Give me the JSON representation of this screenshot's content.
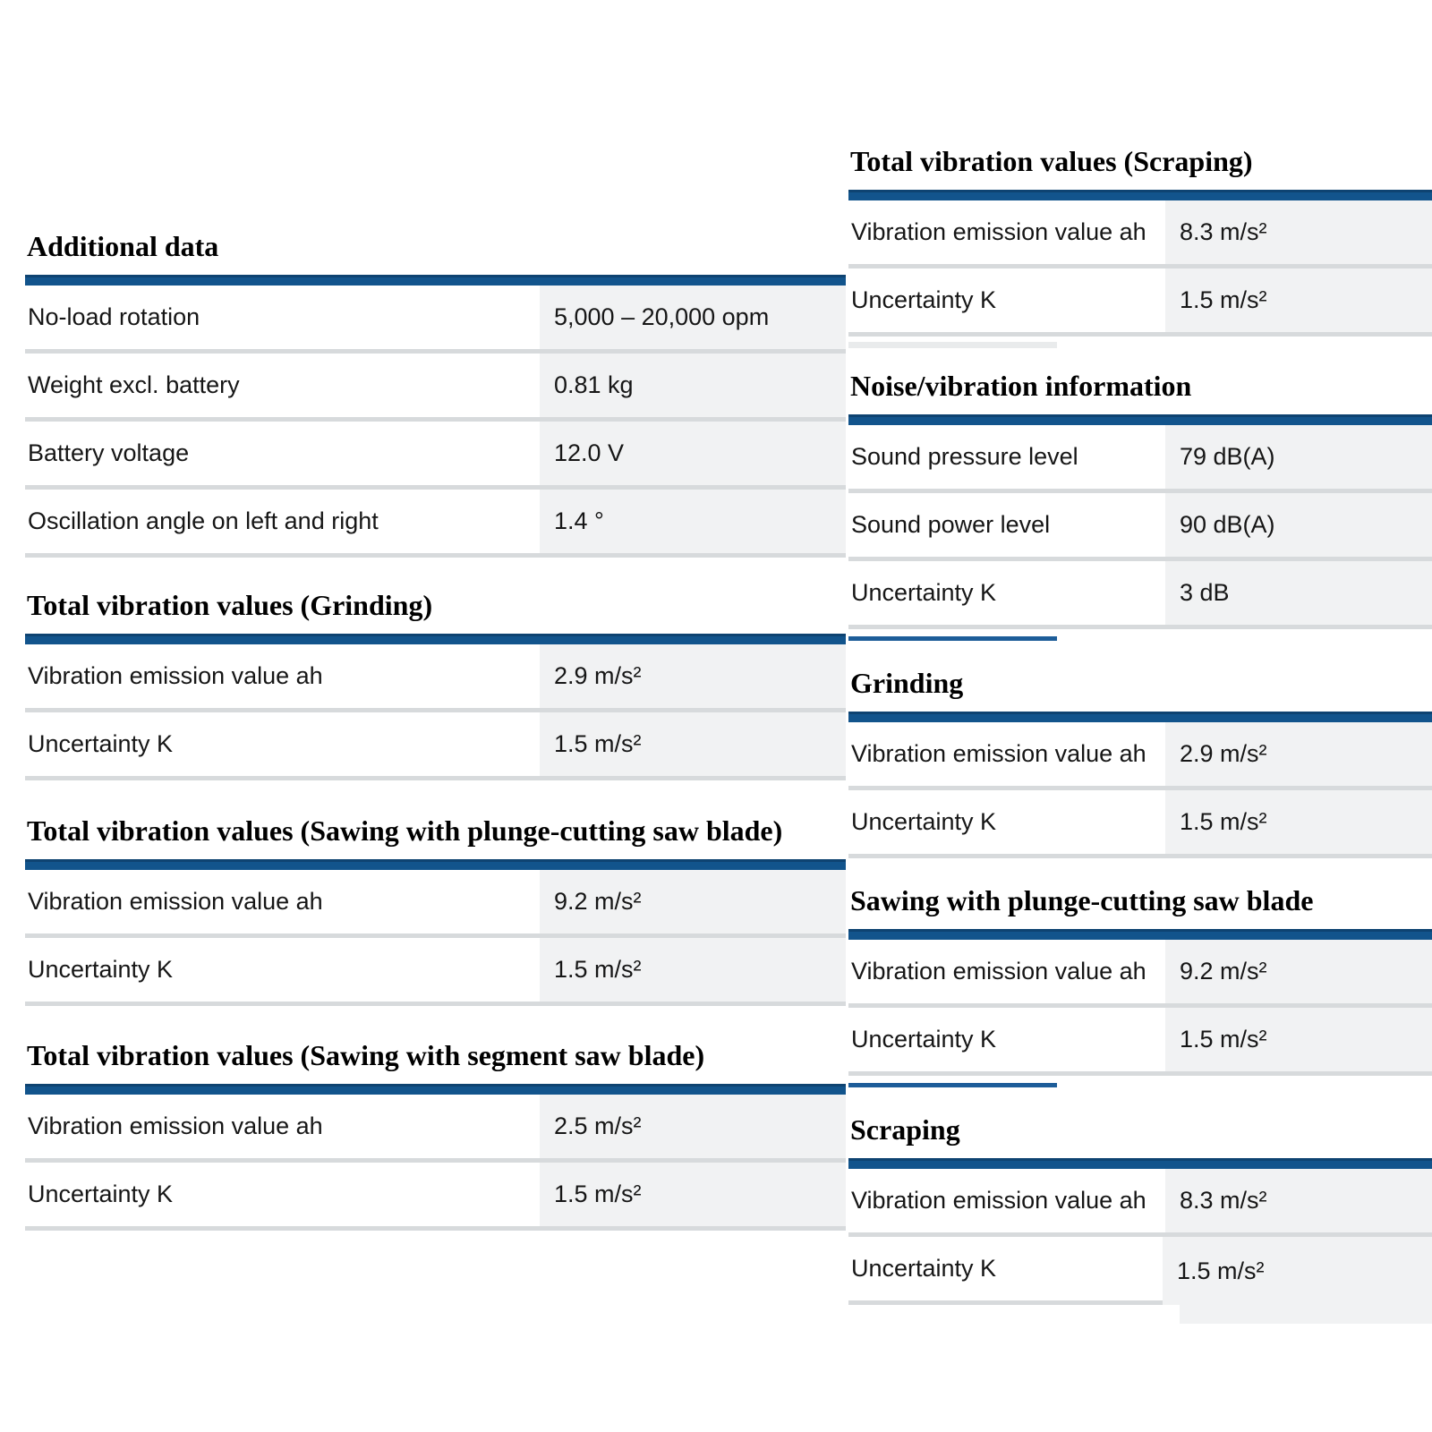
{
  "colors": {
    "accent_bar_blue": "#12548c",
    "partial_underline_blue": "#1d5d99",
    "row_separator_gray": "#d7dadc",
    "value_cell_background": "#f1f2f3",
    "page_background": "#ffffff"
  },
  "left": {
    "sections": [
      {
        "title": "Additional data",
        "rows": [
          {
            "label": "No-load rotation",
            "value": "5,000 – 20,000 opm"
          },
          {
            "label": "Weight excl. battery",
            "value": "0.81 kg"
          },
          {
            "label": "Battery voltage",
            "value": "12.0 V"
          },
          {
            "label": "Oscillation angle on left and right",
            "value": "1.4 °"
          }
        ]
      },
      {
        "title": "Total vibration values (Grinding)",
        "rows": [
          {
            "label": "Vibration emission value ah",
            "value": "2.9 m/s²"
          },
          {
            "label": "Uncertainty K",
            "value": "1.5 m/s²"
          }
        ]
      },
      {
        "title": "Total vibration values (Sawing with plunge-cutting saw blade)",
        "rows": [
          {
            "label": "Vibration emission value ah",
            "value": "9.2 m/s²"
          },
          {
            "label": "Uncertainty K",
            "value": "1.5 m/s²"
          }
        ]
      },
      {
        "title": "Total vibration values (Sawing with segment saw blade)",
        "rows": [
          {
            "label": "Vibration emission value ah",
            "value": "2.5 m/s²"
          },
          {
            "label": "Uncertainty K",
            "value": "1.5 m/s²"
          }
        ]
      }
    ]
  },
  "right": {
    "sections": [
      {
        "title": "Total vibration values (Scraping)",
        "rows": [
          {
            "label": "Vibration emission value ah",
            "value": "8.3 m/s²"
          },
          {
            "label": "Uncertainty K",
            "value": "1.5 m/s²"
          }
        ]
      },
      {
        "title": "Noise/vibration information",
        "rows": [
          {
            "label": "Sound pressure level",
            "value": "79 dB(A)"
          },
          {
            "label": "Sound power level",
            "value": "90 dB(A)"
          },
          {
            "label": "Uncertainty K",
            "value": "3 dB"
          }
        ]
      },
      {
        "title": "Grinding",
        "rows": [
          {
            "label": "Vibration emission value ah",
            "value": "2.9 m/s²"
          },
          {
            "label": "Uncertainty K",
            "value": "1.5 m/s²"
          }
        ]
      },
      {
        "title": "Sawing with plunge-cutting saw blade",
        "rows": [
          {
            "label": "Vibration emission value ah",
            "value": "9.2 m/s²"
          },
          {
            "label": "Uncertainty K",
            "value": "1.5 m/s²"
          }
        ]
      },
      {
        "title": "Scraping",
        "rows": [
          {
            "label": "Vibration emission value ah",
            "value": "8.3 m/s²"
          },
          {
            "label": "Uncertainty K",
            "value": "1.5 m/s²"
          }
        ]
      }
    ]
  }
}
